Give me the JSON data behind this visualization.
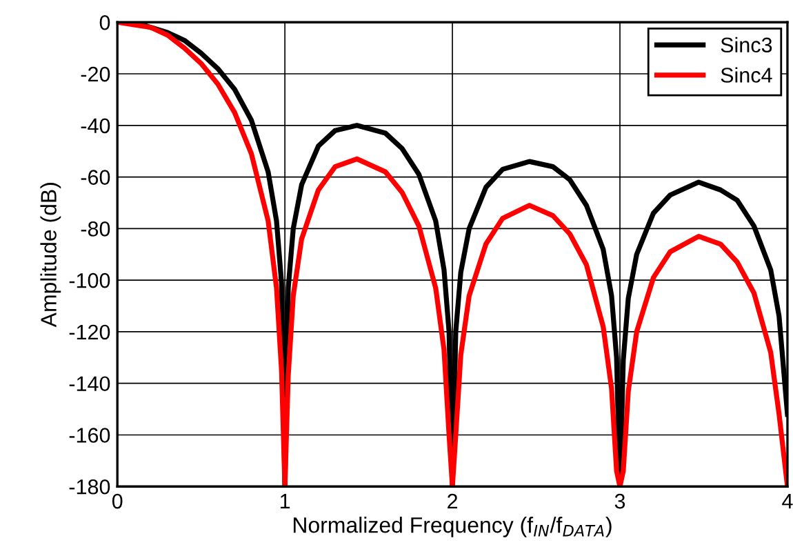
{
  "chart_data": {
    "type": "line",
    "xlabel": "Normalized Frequency (f$_{IN}$/f$_{DATA}$)",
    "ylabel": "Amplitude (dB)",
    "x": [
      0,
      0.1,
      0.2,
      0.3,
      0.4,
      0.5,
      0.6,
      0.7,
      0.8,
      0.9,
      0.95,
      0.98,
      1.0,
      1.02,
      1.05,
      1.1,
      1.2,
      1.3,
      1.43,
      1.6,
      1.7,
      1.8,
      1.9,
      1.95,
      1.98,
      2.0,
      2.02,
      2.05,
      2.1,
      2.2,
      2.3,
      2.46,
      2.6,
      2.7,
      2.8,
      2.9,
      2.95,
      2.98,
      3.0,
      3.02,
      3.05,
      3.1,
      3.2,
      3.3,
      3.47,
      3.6,
      3.7,
      3.8,
      3.9,
      3.95,
      4.0
    ],
    "series": [
      {
        "name": "Sinc3",
        "color": "#000000",
        "values": [
          0,
          0,
          -2,
          -4,
          -7,
          -12,
          -18,
          -26,
          -38,
          -58,
          -77,
          -101,
          -180,
          -103,
          -80,
          -63,
          -48,
          -42,
          -40,
          -43,
          -49,
          -59,
          -77,
          -96,
          -120,
          -180,
          -120,
          -97,
          -80,
          -64,
          -57,
          -54,
          -56,
          -61,
          -71,
          -88,
          -106,
          -130,
          -180,
          -131,
          -107,
          -90,
          -74,
          -67,
          -62,
          -65,
          -69,
          -79,
          -96,
          -114,
          -152
        ]
      },
      {
        "name": "Sinc4",
        "color": "#ff0000",
        "values": [
          0,
          -1,
          -2,
          -5,
          -10,
          -16,
          -24,
          -35,
          -51,
          -77,
          -103,
          -135,
          -180,
          -137,
          -106,
          -84,
          -65,
          -56,
          -53,
          -58,
          -66,
          -79,
          -103,
          -127,
          -160,
          -180,
          -160,
          -129,
          -106,
          -86,
          -76,
          -71,
          -75,
          -82,
          -94,
          -118,
          -142,
          -174,
          -180,
          -174,
          -143,
          -120,
          -99,
          -89,
          -83,
          -86,
          -93,
          -105,
          -128,
          -152,
          -180
        ]
      }
    ],
    "xlim": [
      0,
      4
    ],
    "ylim": [
      -180,
      0
    ],
    "xticks": [
      0,
      1,
      2,
      3,
      4
    ],
    "yticks": [
      {
        "value": 0,
        "label": "0"
      },
      {
        "value": -20,
        "label": "-20"
      },
      {
        "value": -40,
        "label": "-40"
      },
      {
        "value": -60,
        "label": "-60"
      },
      {
        "value": -80,
        "label": "-80"
      },
      {
        "value": -100,
        "label": "-100"
      },
      {
        "value": -120,
        "label": "-120"
      },
      {
        "value": -140,
        "label": "-140"
      },
      {
        "value": -160,
        "label": "-160"
      },
      {
        "value": -180,
        "label": "-180"
      }
    ],
    "grid": true,
    "legend": "top right",
    "marker": "none",
    "line_style": "solid"
  }
}
